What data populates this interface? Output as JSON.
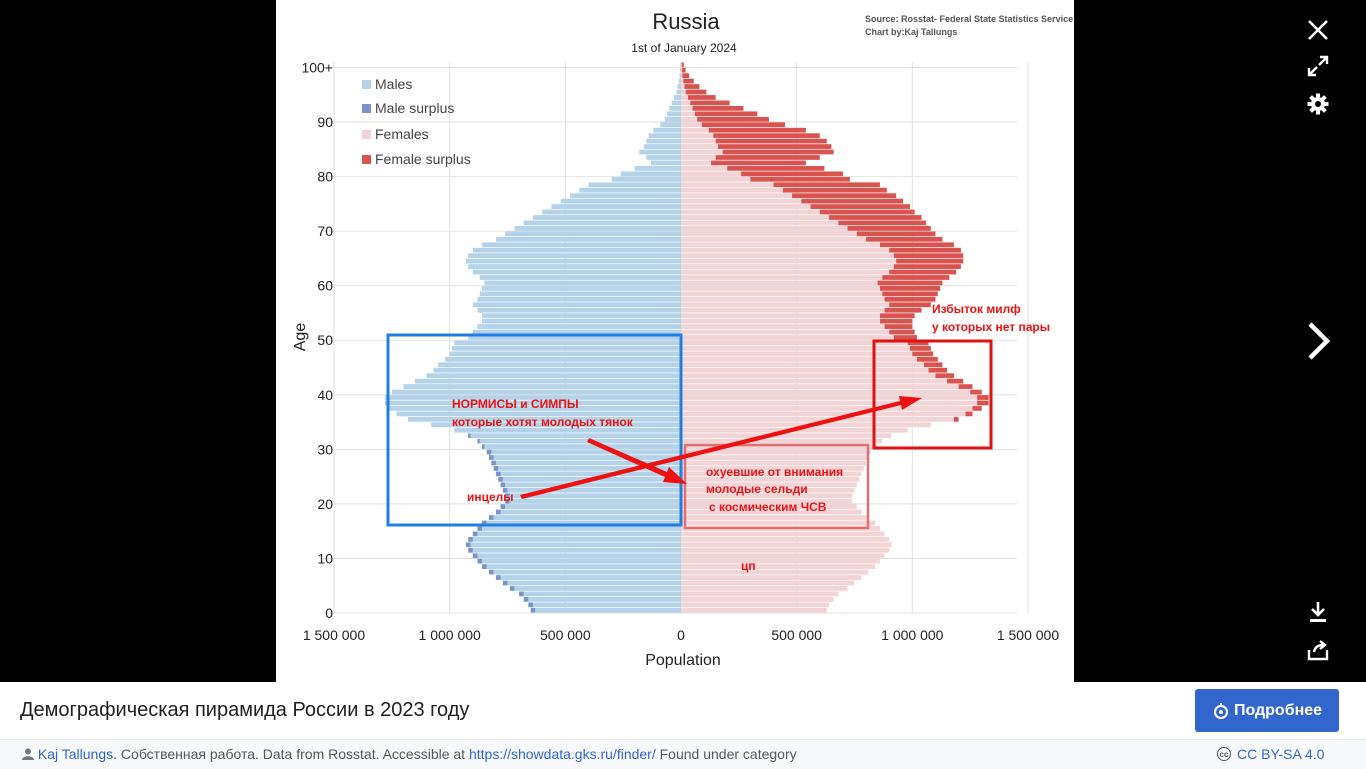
{
  "caption": {
    "title": "Демографическая пирамида России в 2023 году",
    "more_label": "Подробнее"
  },
  "credit": {
    "author": "Kaj Tallungs",
    "text_before_link": ". Собственная работа. Data from Rosstat. Accessible at ",
    "link": "https://showdata.gks.ru/finder/",
    "text_after_link": " Found under category",
    "license": "CC BY-SA 4.0"
  },
  "icons": {
    "close": "close-icon",
    "expand": "expand-icon",
    "settings": "gear-icon",
    "next": "chevron-right-icon",
    "download": "download-icon",
    "share": "share-icon"
  },
  "colors": {
    "males": "#b4d3ea",
    "male_surplus": "#7a94c8",
    "females": "#f2d4d6",
    "female_surplus": "#d9534f",
    "annotation_red": "#ee1111",
    "annotation_blue": "#1e7fe0",
    "button_blue": "#3366cc"
  },
  "annotations": {
    "milf": [
      "Избыток милф",
      "у которых нет пары"
    ],
    "normies": [
      "НОРМИСЫ и СИМПЫ",
      "которые хотят молодых тянок"
    ],
    "incels": "инцелы",
    "herring": [
      "охуевшие от внимания",
      "молодые сельди",
      "с космическим ЧСВ"
    ],
    "cp": "цп"
  },
  "chart_data": {
    "type": "bar",
    "orientation": "horizontal population pyramid",
    "title": "Russia",
    "subtitle": "1st of January 2024",
    "source_lines": [
      "Source: Rosstat- Federal State Statistics Service",
      "Chart by:Kaj Tallungs"
    ],
    "xlabel": "Population",
    "ylabel": "Age",
    "xlim": [
      -1500000,
      1500000
    ],
    "ylim": [
      0,
      100
    ],
    "x_ticks": [
      "1 500 000",
      "1 000 000",
      "500 000",
      "0",
      "500 000",
      "1 000 000",
      "1 500 000"
    ],
    "y_ticks": [
      "0",
      "10",
      "20",
      "30",
      "40",
      "50",
      "60",
      "70",
      "80",
      "90",
      "100+"
    ],
    "legend": [
      "Males",
      "Male surplus",
      "Females",
      "Female surplus"
    ],
    "legend_position": "top-left",
    "grid": true,
    "ages": [
      0,
      1,
      2,
      3,
      4,
      5,
      6,
      7,
      8,
      9,
      10,
      11,
      12,
      13,
      14,
      15,
      16,
      17,
      18,
      19,
      20,
      21,
      22,
      23,
      24,
      25,
      26,
      27,
      28,
      29,
      30,
      31,
      32,
      33,
      34,
      35,
      36,
      37,
      38,
      39,
      40,
      41,
      42,
      43,
      44,
      45,
      46,
      47,
      48,
      49,
      50,
      51,
      52,
      53,
      54,
      55,
      56,
      57,
      58,
      59,
      60,
      61,
      62,
      63,
      64,
      65,
      66,
      67,
      68,
      69,
      70,
      71,
      72,
      73,
      74,
      75,
      76,
      77,
      78,
      79,
      80,
      81,
      82,
      83,
      84,
      85,
      86,
      87,
      88,
      89,
      90,
      91,
      92,
      93,
      94,
      95,
      96,
      97,
      98,
      99,
      "100+"
    ],
    "series": [
      {
        "name": "Males",
        "values": [
          650000,
          660000,
          680000,
          700000,
          740000,
          770000,
          800000,
          830000,
          860000,
          880000,
          900000,
          920000,
          930000,
          920000,
          900000,
          880000,
          860000,
          830000,
          800000,
          780000,
          760000,
          760000,
          770000,
          780000,
          790000,
          800000,
          810000,
          820000,
          830000,
          840000,
          860000,
          880000,
          920000,
          980000,
          1080000,
          1180000,
          1230000,
          1260000,
          1280000,
          1280000,
          1250000,
          1200000,
          1150000,
          1100000,
          1070000,
          1050000,
          1020000,
          1000000,
          990000,
          980000,
          920000,
          900000,
          880000,
          860000,
          860000,
          880000,
          900000,
          880000,
          870000,
          860000,
          850000,
          870000,
          900000,
          920000,
          930000,
          920000,
          900000,
          860000,
          800000,
          760000,
          720000,
          680000,
          640000,
          600000,
          560000,
          520000,
          480000,
          440000,
          400000,
          300000,
          260000,
          200000,
          130000,
          150000,
          180000,
          160000,
          150000,
          140000,
          120000,
          90000,
          70000,
          60000,
          50000,
          40000,
          30000,
          20000,
          15000,
          10000,
          6000,
          4000,
          3000
        ]
      },
      {
        "name": "Females",
        "values": [
          630000,
          640000,
          660000,
          680000,
          720000,
          750000,
          780000,
          810000,
          840000,
          860000,
          880000,
          900000,
          910000,
          900000,
          880000,
          860000,
          840000,
          810000,
          780000,
          760000,
          740000,
          740000,
          750000,
          760000,
          770000,
          780000,
          790000,
          800000,
          810000,
          820000,
          850000,
          870000,
          910000,
          980000,
          1080000,
          1200000,
          1260000,
          1300000,
          1330000,
          1330000,
          1300000,
          1260000,
          1220000,
          1180000,
          1150000,
          1130000,
          1110000,
          1090000,
          1080000,
          1070000,
          1020000,
          1010000,
          1000000,
          1000000,
          1010000,
          1040000,
          1080000,
          1100000,
          1110000,
          1120000,
          1130000,
          1160000,
          1190000,
          1210000,
          1220000,
          1220000,
          1210000,
          1180000,
          1130000,
          1100000,
          1080000,
          1060000,
          1040000,
          1010000,
          990000,
          960000,
          930000,
          890000,
          860000,
          730000,
          700000,
          620000,
          540000,
          600000,
          660000,
          650000,
          630000,
          600000,
          540000,
          450000,
          380000,
          330000,
          270000,
          210000,
          150000,
          110000,
          80000,
          55000,
          35000,
          20000,
          12000
        ]
      }
    ]
  }
}
